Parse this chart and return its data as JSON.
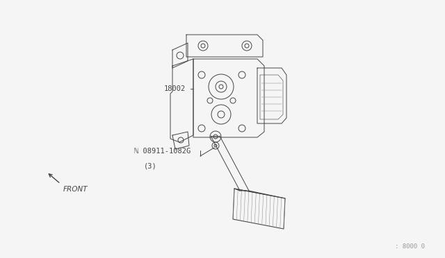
{
  "bg_color": "#f5f5f5",
  "line_color": "#444444",
  "text_color": "#444444",
  "light_line": "#888888",
  "label_18002": "18002",
  "label_bolt": "ℕ 08911-1082G",
  "label_bolt2": "(3)",
  "label_front": "FRONT",
  "label_ref": ": 8000 0",
  "annotation_fontsize": 7.5,
  "ref_fontsize": 6.5
}
